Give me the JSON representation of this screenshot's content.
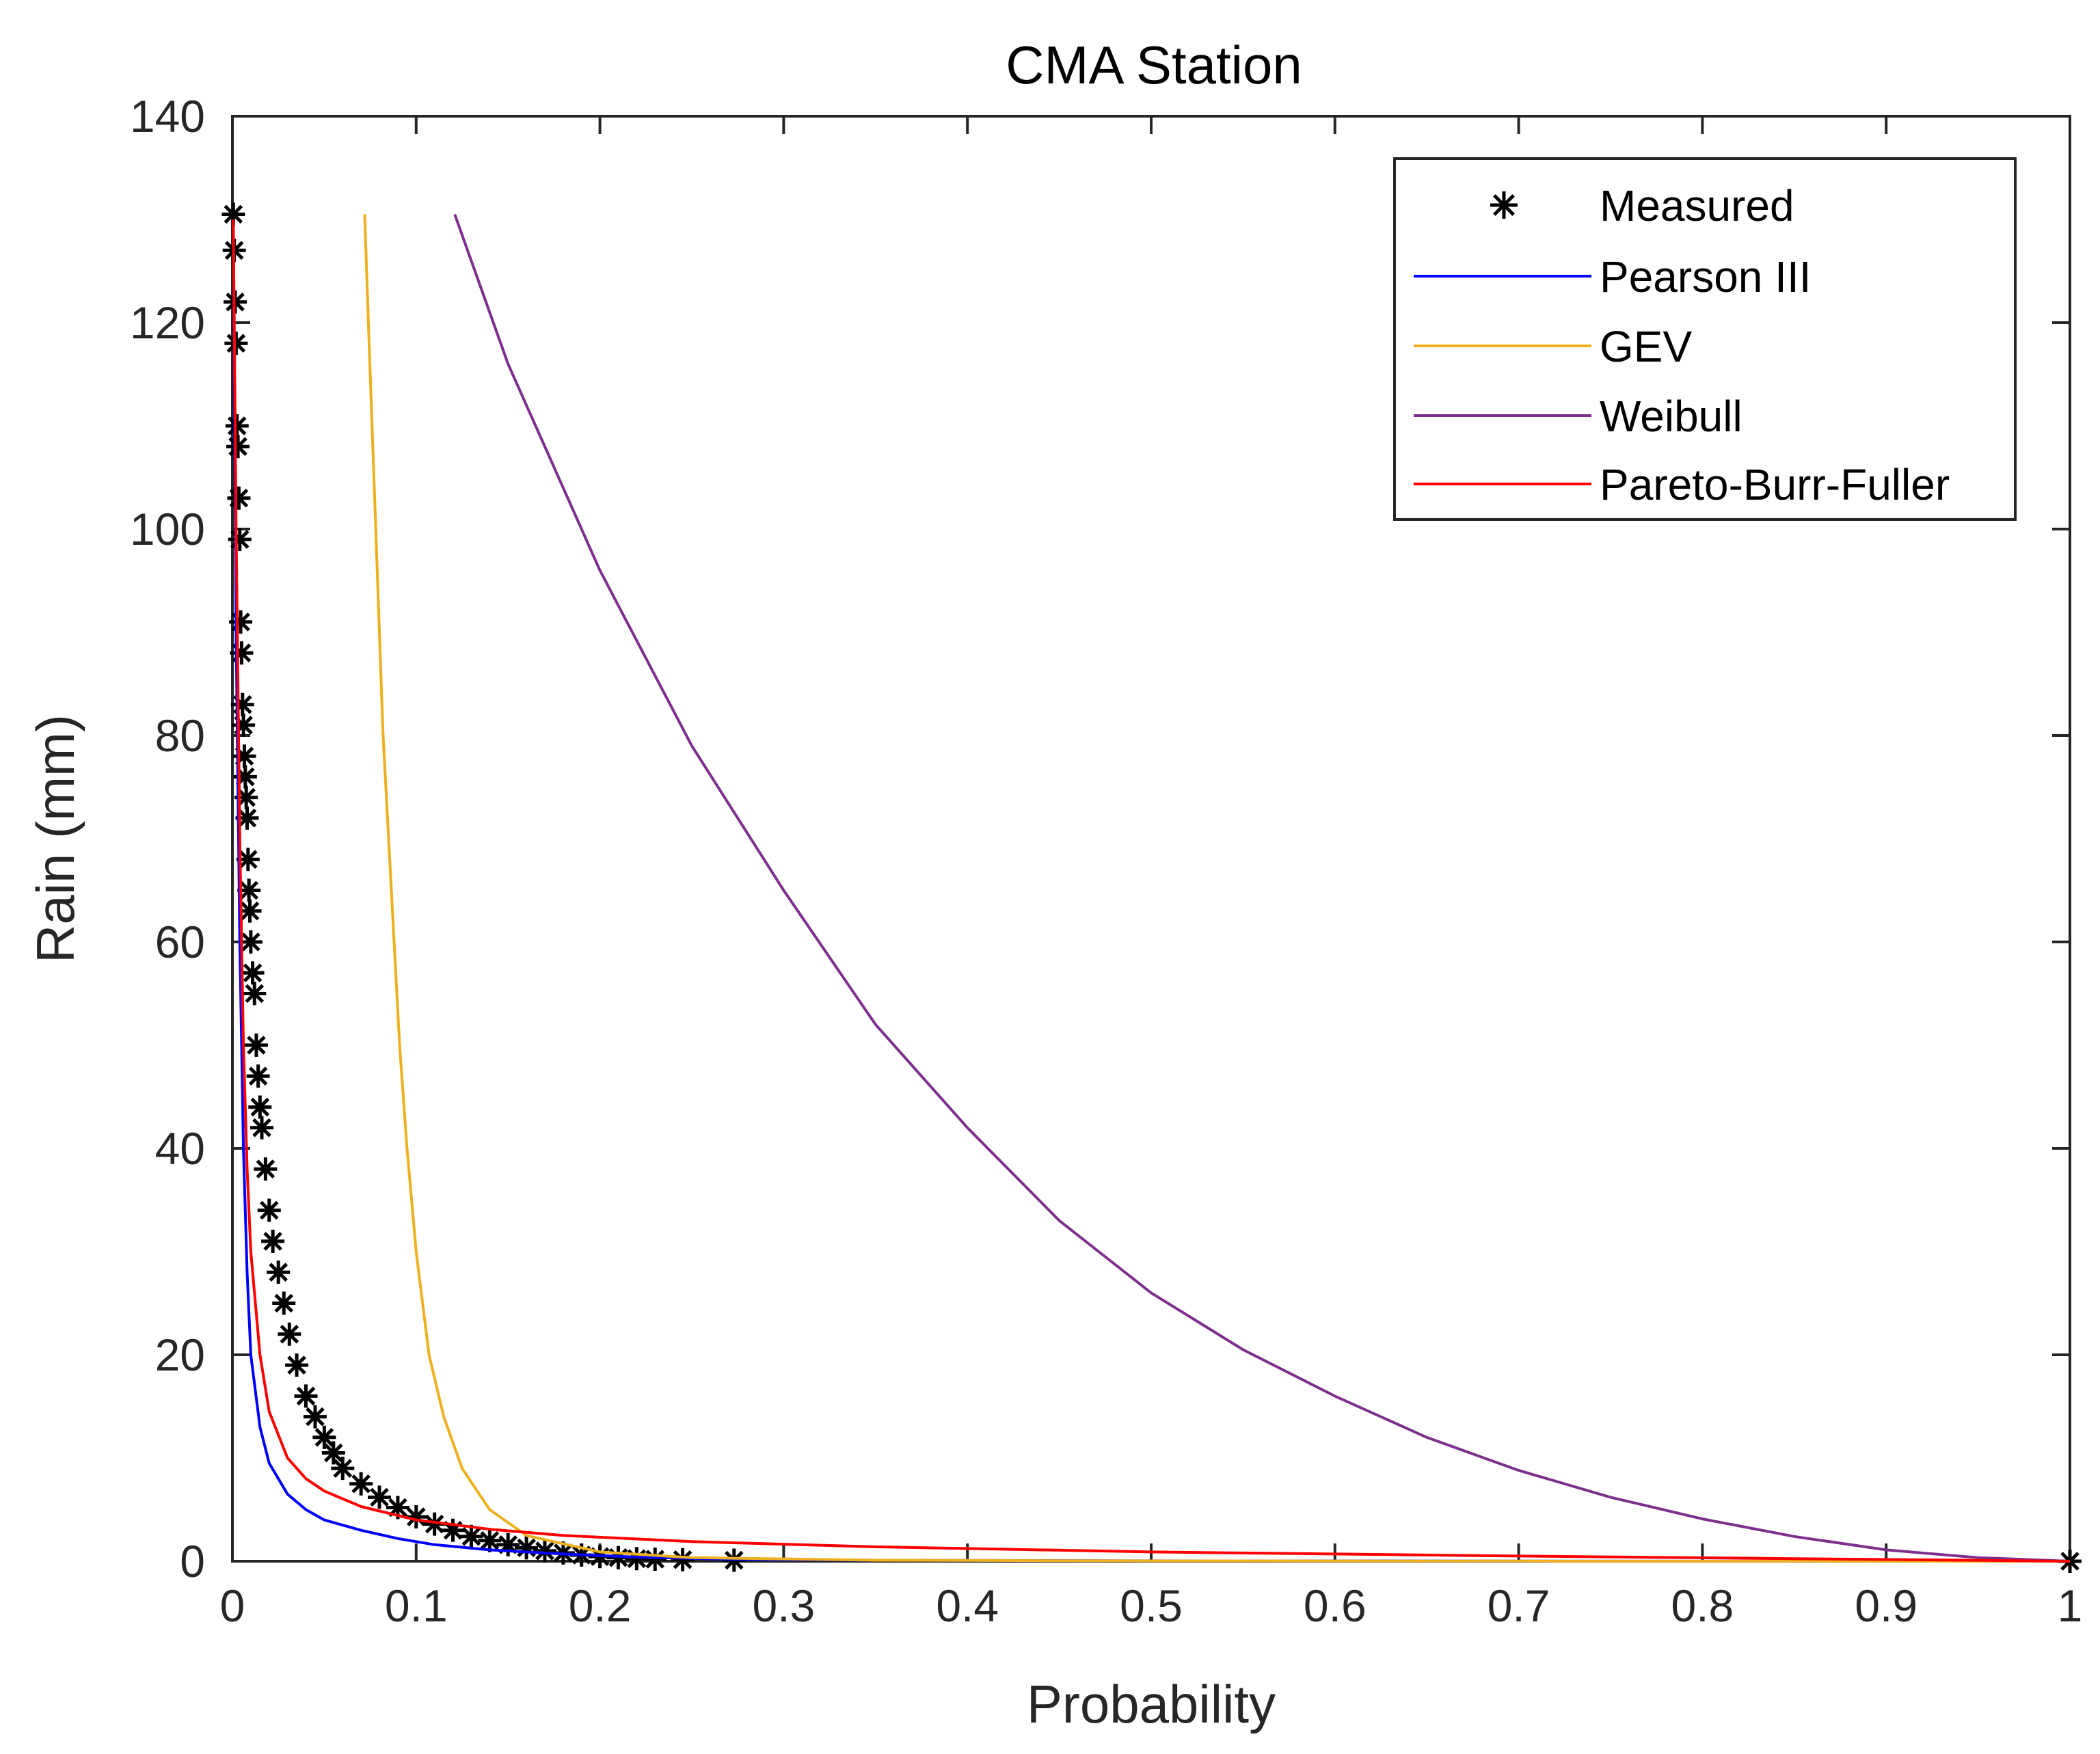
{
  "chart_data": {
    "type": "line",
    "title": "CMA Station",
    "xlabel": "Probability",
    "ylabel": "Rain (mm)",
    "xlim": [
      0,
      1
    ],
    "ylim": [
      0,
      140
    ],
    "xticks": [
      0,
      0.1,
      0.2,
      0.3,
      0.4,
      0.5,
      0.6,
      0.7,
      0.8,
      0.9,
      1
    ],
    "xtick_labels": [
      "0",
      "0.1",
      "0.2",
      "0.3",
      "0.4",
      "0.5",
      "0.6",
      "0.7",
      "0.8",
      "0.9",
      "1"
    ],
    "yticks": [
      0,
      20,
      40,
      60,
      80,
      100,
      120,
      140
    ],
    "ytick_labels": [
      "0",
      "20",
      "40",
      "60",
      "80",
      "100",
      "120",
      "140"
    ],
    "grid": false,
    "legend_position": "top-right",
    "series": [
      {
        "name": "Measured",
        "kind": "scatter",
        "marker": "asterisk",
        "color": "#000000",
        "points": [
          [
            0.0005,
            130.5
          ],
          [
            0.001,
            127
          ],
          [
            0.0015,
            122
          ],
          [
            0.002,
            118
          ],
          [
            0.0025,
            110
          ],
          [
            0.003,
            108
          ],
          [
            0.0035,
            103
          ],
          [
            0.004,
            99
          ],
          [
            0.0045,
            91
          ],
          [
            0.005,
            88
          ],
          [
            0.0055,
            83
          ],
          [
            0.006,
            81
          ],
          [
            0.0065,
            78
          ],
          [
            0.007,
            76
          ],
          [
            0.0075,
            74
          ],
          [
            0.008,
            72
          ],
          [
            0.0085,
            68
          ],
          [
            0.009,
            65
          ],
          [
            0.0095,
            63
          ],
          [
            0.01,
            60
          ],
          [
            0.011,
            57
          ],
          [
            0.012,
            55
          ],
          [
            0.013,
            50
          ],
          [
            0.014,
            47
          ],
          [
            0.015,
            44
          ],
          [
            0.016,
            42
          ],
          [
            0.018,
            38
          ],
          [
            0.02,
            34
          ],
          [
            0.022,
            31
          ],
          [
            0.025,
            28
          ],
          [
            0.028,
            25
          ],
          [
            0.031,
            22
          ],
          [
            0.035,
            19
          ],
          [
            0.04,
            16
          ],
          [
            0.045,
            14
          ],
          [
            0.05,
            12
          ],
          [
            0.055,
            10.5
          ],
          [
            0.06,
            9
          ],
          [
            0.07,
            7.5
          ],
          [
            0.08,
            6.2
          ],
          [
            0.09,
            5.2
          ],
          [
            0.1,
            4.3
          ],
          [
            0.11,
            3.6
          ],
          [
            0.12,
            3
          ],
          [
            0.13,
            2.4
          ],
          [
            0.14,
            2
          ],
          [
            0.15,
            1.6
          ],
          [
            0.16,
            1.3
          ],
          [
            0.17,
            1
          ],
          [
            0.18,
            0.8
          ],
          [
            0.19,
            0.6
          ],
          [
            0.2,
            0.45
          ],
          [
            0.21,
            0.35
          ],
          [
            0.22,
            0.25
          ],
          [
            0.23,
            0.2
          ],
          [
            0.245,
            0.15
          ],
          [
            0.273,
            0.1
          ],
          [
            1.0,
            0.0
          ]
        ]
      },
      {
        "name": "Pearson III",
        "kind": "line",
        "color": "#0000ff",
        "points": [
          [
            0.0005,
            130
          ],
          [
            0.002,
            90
          ],
          [
            0.004,
            60
          ],
          [
            0.006,
            40
          ],
          [
            0.008,
            28
          ],
          [
            0.01,
            20
          ],
          [
            0.015,
            13
          ],
          [
            0.02,
            9.5
          ],
          [
            0.03,
            6.5
          ],
          [
            0.04,
            5
          ],
          [
            0.05,
            4
          ],
          [
            0.07,
            3
          ],
          [
            0.09,
            2.2
          ],
          [
            0.11,
            1.6
          ],
          [
            0.14,
            1.1
          ],
          [
            0.18,
            0.7
          ],
          [
            0.22,
            0.4
          ],
          [
            0.27,
            0.2
          ],
          [
            0.35,
            0.1
          ],
          [
            0.5,
            0.04
          ],
          [
            0.7,
            0.015
          ],
          [
            1.0,
            0
          ]
        ]
      },
      {
        "name": "GEV",
        "kind": "line",
        "color": "#edb120",
        "points": [
          [
            0.072,
            130.5
          ],
          [
            0.074,
            120
          ],
          [
            0.076,
            110
          ],
          [
            0.078,
            100
          ],
          [
            0.08,
            90
          ],
          [
            0.082,
            80
          ],
          [
            0.085,
            70
          ],
          [
            0.088,
            60
          ],
          [
            0.091,
            50
          ],
          [
            0.095,
            40
          ],
          [
            0.1,
            30
          ],
          [
            0.107,
            20
          ],
          [
            0.115,
            14
          ],
          [
            0.125,
            9
          ],
          [
            0.14,
            5
          ],
          [
            0.16,
            2.5
          ],
          [
            0.2,
            0.9
          ],
          [
            0.25,
            0.35
          ],
          [
            0.35,
            0.1
          ],
          [
            0.5,
            0.03
          ],
          [
            0.7,
            0.01
          ],
          [
            1.0,
            0
          ]
        ]
      },
      {
        "name": "Weibull",
        "kind": "line",
        "color": "#7e2f8e",
        "points": [
          [
            0.121,
            130.5
          ],
          [
            0.15,
            116
          ],
          [
            0.2,
            96
          ],
          [
            0.25,
            79
          ],
          [
            0.3,
            65
          ],
          [
            0.35,
            52
          ],
          [
            0.4,
            42
          ],
          [
            0.45,
            33
          ],
          [
            0.5,
            26
          ],
          [
            0.55,
            20.5
          ],
          [
            0.6,
            16
          ],
          [
            0.65,
            12
          ],
          [
            0.7,
            8.8
          ],
          [
            0.75,
            6.2
          ],
          [
            0.8,
            4.1
          ],
          [
            0.85,
            2.4
          ],
          [
            0.9,
            1.1
          ],
          [
            0.95,
            0.35
          ],
          [
            1.0,
            0
          ]
        ]
      },
      {
        "name": "Pareto-Burr-Fuller",
        "kind": "line",
        "color": "#ff0000",
        "points": [
          [
            0.0005,
            130
          ],
          [
            0.002,
            100
          ],
          [
            0.004,
            70
          ],
          [
            0.006,
            50
          ],
          [
            0.008,
            38
          ],
          [
            0.01,
            30
          ],
          [
            0.015,
            20
          ],
          [
            0.02,
            14.5
          ],
          [
            0.03,
            10
          ],
          [
            0.04,
            8
          ],
          [
            0.05,
            6.8
          ],
          [
            0.07,
            5.3
          ],
          [
            0.1,
            4
          ],
          [
            0.14,
            3.1
          ],
          [
            0.18,
            2.5
          ],
          [
            0.25,
            1.9
          ],
          [
            0.35,
            1.4
          ],
          [
            0.5,
            0.9
          ],
          [
            0.7,
            0.5
          ],
          [
            0.85,
            0.25
          ],
          [
            1.0,
            0
          ]
        ]
      }
    ]
  }
}
